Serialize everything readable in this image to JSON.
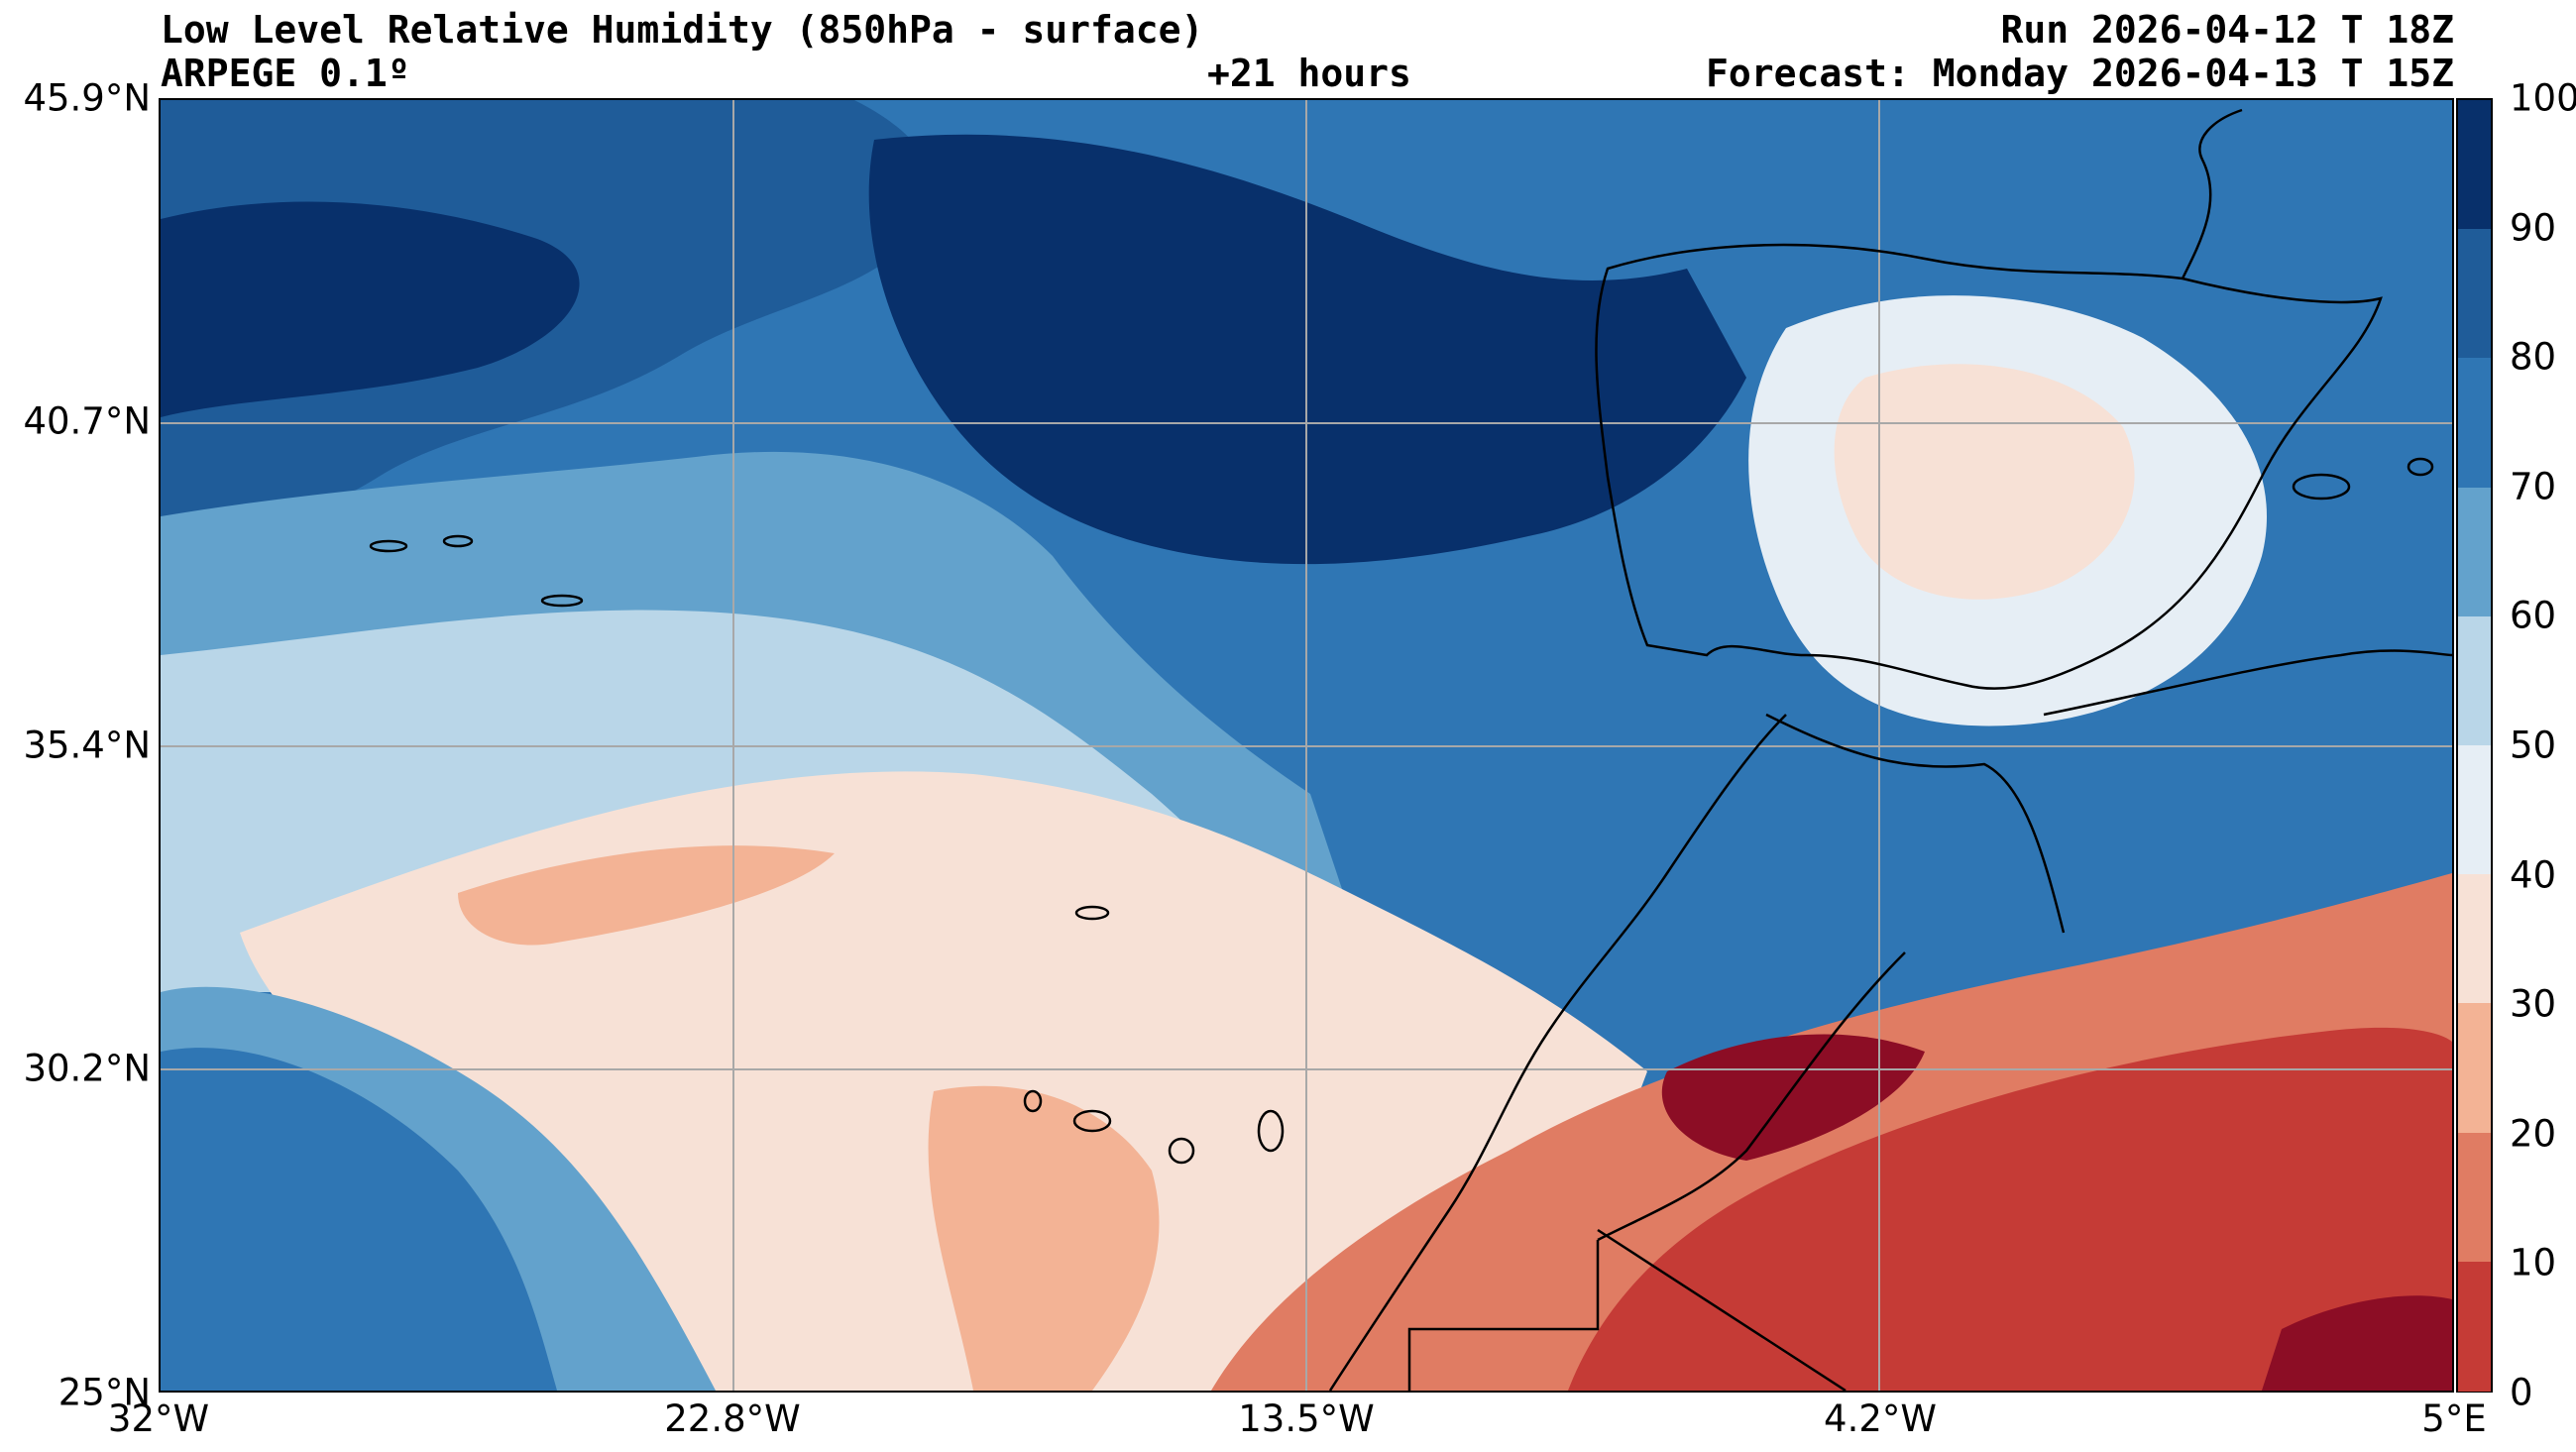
{
  "header": {
    "title_line1": "Low Level Relative Humidity (850hPa - surface)",
    "model": "ARPEGE 0.1º",
    "lead": "+21 hours",
    "run": "Run 2026-04-12 T 18Z",
    "forecast": "Forecast: Monday 2026-04-13 T 15Z"
  },
  "map": {
    "lat_ticks": [
      "45.9°N",
      "40.7°N",
      "35.4°N",
      "30.2°N",
      "25°N"
    ],
    "lon_ticks": [
      "32°W",
      "22.8°W",
      "13.5°W",
      "4.2°W",
      "5°E"
    ],
    "lat_range": [
      25,
      45.9
    ],
    "lon_range": [
      -32,
      5
    ],
    "grid": true
  },
  "colorbar": {
    "ticks": [
      "100",
      "90",
      "80",
      "70",
      "60",
      "50",
      "40",
      "30",
      "20",
      "10",
      "0"
    ],
    "colors": [
      "#08306b",
      "#1f5c99",
      "#2f76b4",
      "#63a2cc",
      "#b9d6e8",
      "#e6eef5",
      "#f7e1d6",
      "#f3b395",
      "#e07c63",
      "#c53b36",
      "#8c0d25"
    ]
  }
}
